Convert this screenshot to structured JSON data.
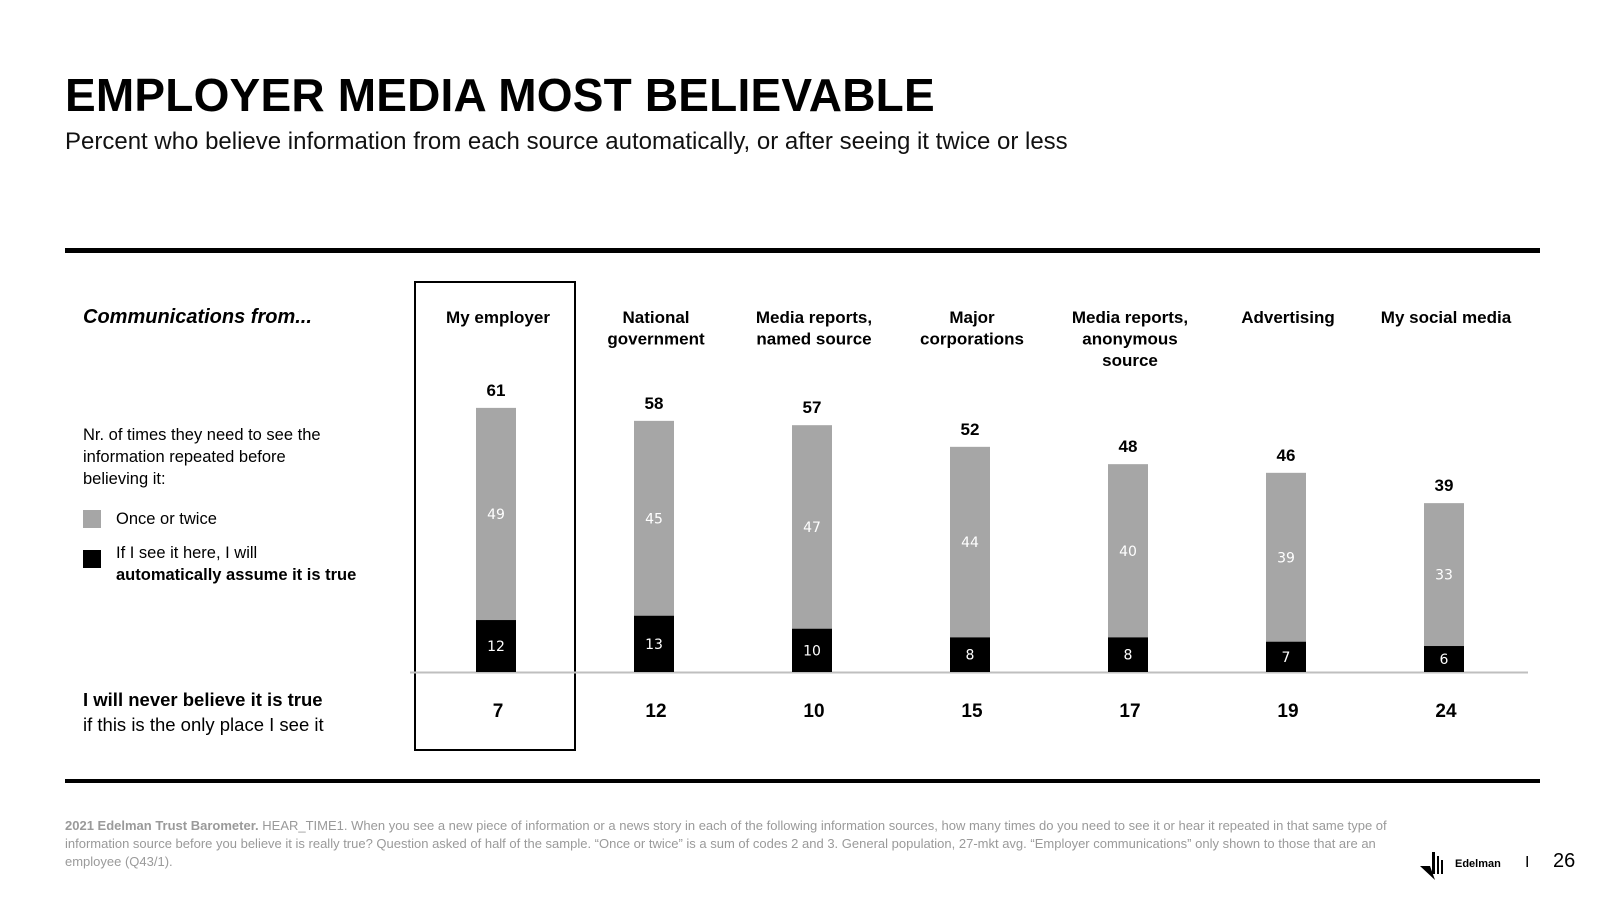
{
  "title": "EMPLOYER MEDIA MOST BELIEVABLE",
  "subtitle": "Percent who believe information from each source automatically,  or after seeing it twice or less",
  "left_panel": {
    "communications_from": "Communications from...",
    "nr_times": "Nr. of times they need to see the information repeated before believing it:",
    "legend_once": "Once or twice",
    "legend_auto_1": "If I see it here, I will",
    "legend_auto_2": "automatically assume it is true",
    "never_1": "I will never believe it is true",
    "never_2": "if this is the only place I see it"
  },
  "colors": {
    "once": "#a6a6a6",
    "auto": "#000000",
    "baseline": "#bfbfbf"
  },
  "chart_data": {
    "type": "bar",
    "stacked": true,
    "title": "EMPLOYER MEDIA MOST BELIEVABLE",
    "categories": [
      [
        "My employer"
      ],
      [
        "National",
        "government"
      ],
      [
        "Media reports,",
        "named source"
      ],
      [
        "Major",
        "corporations"
      ],
      [
        "Media reports,",
        "anonymous",
        "source"
      ],
      [
        "Advertising"
      ],
      [
        "My social media"
      ]
    ],
    "series": [
      {
        "name": "If I see it here, I will automatically assume it is true",
        "values": [
          12,
          13,
          10,
          8,
          8,
          7,
          6
        ]
      },
      {
        "name": "Once or twice",
        "values": [
          49,
          45,
          47,
          44,
          40,
          39,
          33
        ]
      }
    ],
    "totals": [
      61,
      58,
      57,
      52,
      48,
      46,
      39
    ],
    "never_believe": [
      7,
      12,
      10,
      15,
      17,
      19,
      24
    ],
    "highlighted_category": "My employer",
    "ylim": [
      0,
      65
    ]
  },
  "footnote": {
    "source": "2021 Edelman Trust Barometer.",
    "text": " HEAR_TIME1. When you see a new piece of information or a news story in each of the following information sources, how many times do you need to see it or hear it repeated in that same type of information source before you believe it is really true? Question asked of half of the sample. “Once or twice” is a sum of codes 2 and 3. General population, 27-mkt avg. “Employer communications” only shown to those that are an employee (Q43/1)."
  },
  "brand": "Edelman",
  "separator": "I",
  "page_number": "26"
}
